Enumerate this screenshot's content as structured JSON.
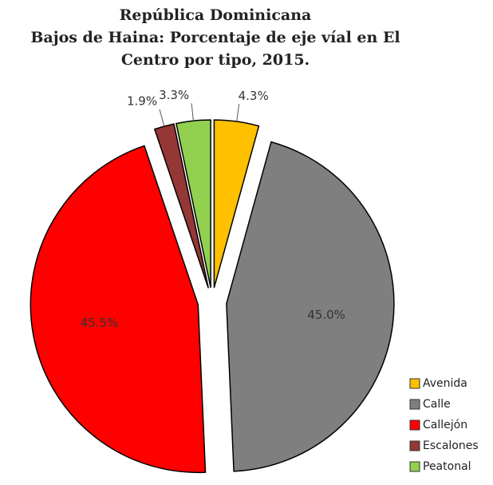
{
  "chart_data": {
    "type": "pie",
    "title": [
      "República Dominicana",
      "Bajos de Haina: Porcentaje de eje víal en El",
      "Centro por tipo, 2015."
    ],
    "categories": [
      "Avenida",
      "Calle",
      "Callejón",
      "Escalones",
      "Peatonal"
    ],
    "values": [
      4.3,
      45.0,
      45.5,
      1.9,
      3.3
    ],
    "value_labels": [
      "4.3%",
      "45.0%",
      "45.5%",
      "1.9%",
      "3.3%"
    ],
    "colors": [
      "#ffc000",
      "#7f7f7f",
      "#ff0000",
      "#953735",
      "#92d050"
    ],
    "legend": "bottom-right"
  }
}
